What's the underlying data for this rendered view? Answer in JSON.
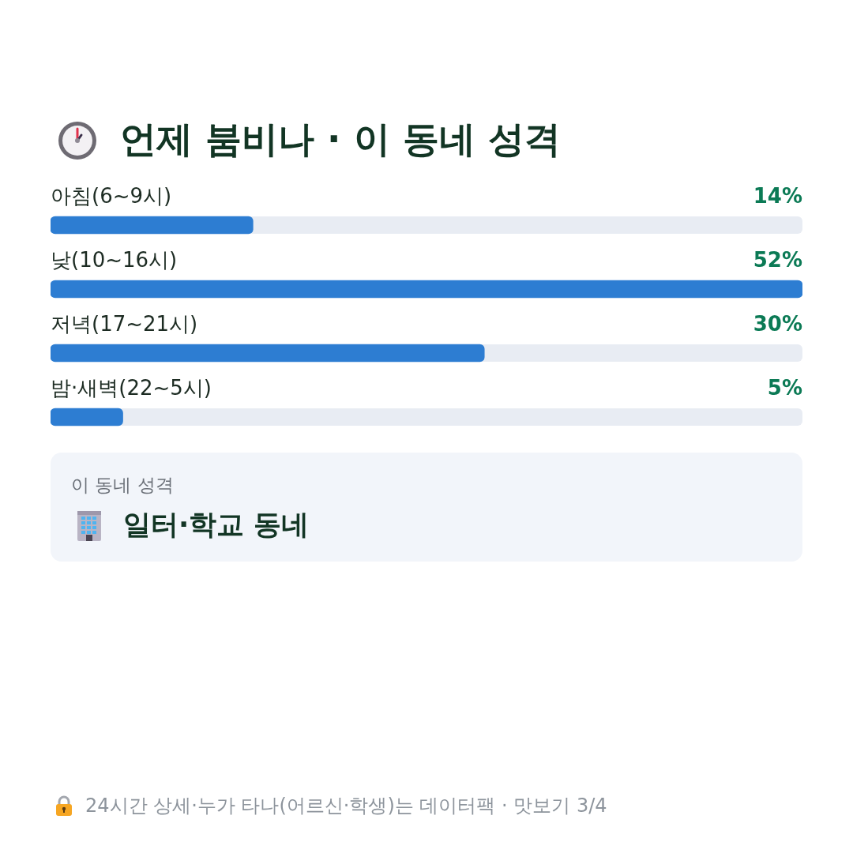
{
  "chart_data": [
    {
      "type": "bar",
      "orientation": "horizontal",
      "title": "언제 붐비나 · 이 동네 성격",
      "categories": [
        "아침(6~9시)",
        "낮(10~16시)",
        "저녁(17~21시)",
        "밤·새벽(22~5시)"
      ],
      "values": [
        14,
        52,
        30,
        5
      ],
      "value_labels": [
        "14%",
        "52%",
        "30%",
        "5%"
      ],
      "color": "#2d7dd2",
      "xlim": [
        0,
        52
      ],
      "tick_labels": "y",
      "annotations": [
        "24시간 상세·누가 타나(어르신·학생)는 데이터팩 · 맛보기 3/4"
      ]
    },
    {
      "type": "other",
      "title": "이 동네 성격",
      "annotations": [
        "일터·학교 동네"
      ]
    }
  ]
}
